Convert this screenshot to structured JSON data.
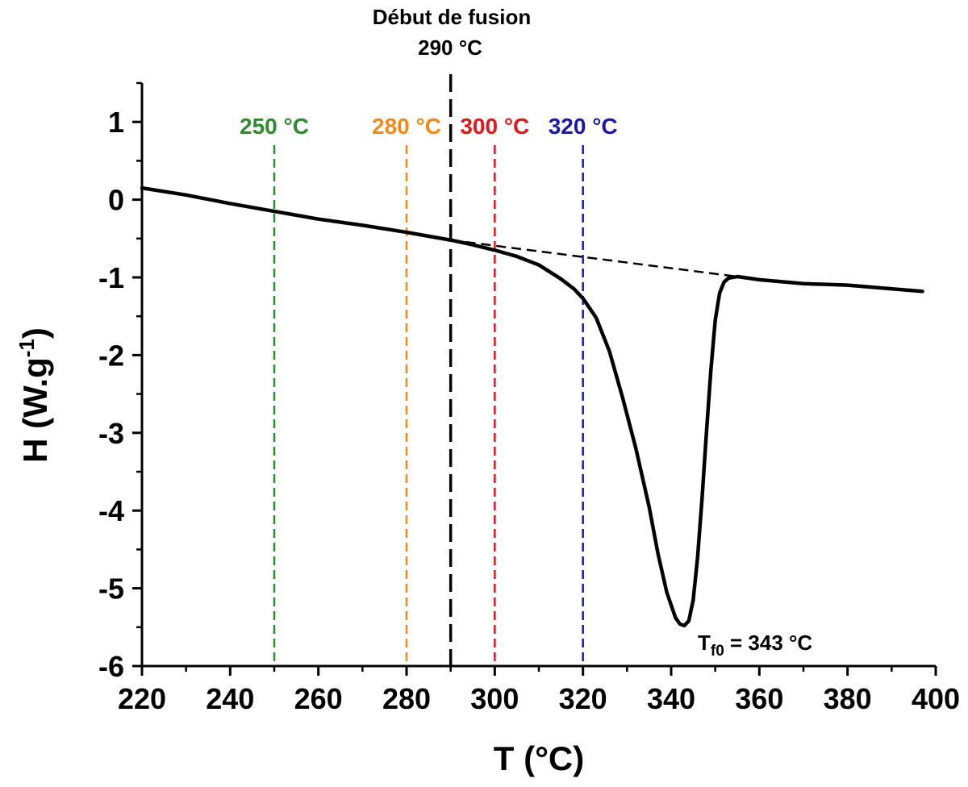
{
  "chart_data": {
    "type": "line",
    "xlabel": "T (°C)",
    "ylabel_main": "H (W.g",
    "ylabel_sup": "-1",
    "ylabel_end": ")",
    "xlim": [
      220,
      400
    ],
    "ylim": [
      -6,
      1.5
    ],
    "x_ticks": [
      220,
      240,
      260,
      280,
      300,
      320,
      340,
      360,
      380,
      400
    ],
    "y_ticks": [
      -6,
      -5,
      -4,
      -3,
      -2,
      -1,
      0,
      1
    ],
    "grid": false,
    "series": [
      {
        "color": "#000000",
        "x": [
          220,
          230,
          240,
          250,
          260,
          270,
          280,
          290,
          295,
          300,
          305,
          310,
          315,
          318,
          320,
          323,
          326,
          329,
          332,
          335,
          337,
          339,
          341,
          342,
          343,
          344,
          345,
          346,
          347,
          348,
          349,
          350,
          351,
          352,
          353,
          355,
          360,
          370,
          380,
          397
        ],
        "y": [
          0.15,
          0.06,
          -0.05,
          -0.15,
          -0.25,
          -0.33,
          -0.42,
          -0.52,
          -0.58,
          -0.65,
          -0.73,
          -0.84,
          -1.02,
          -1.15,
          -1.27,
          -1.52,
          -1.95,
          -2.55,
          -3.2,
          -3.95,
          -4.55,
          -5.05,
          -5.38,
          -5.46,
          -5.48,
          -5.42,
          -5.15,
          -4.6,
          -3.85,
          -3.0,
          -2.2,
          -1.55,
          -1.2,
          -1.06,
          -1.01,
          -0.99,
          -1.03,
          -1.08,
          -1.1,
          -1.18
        ]
      }
    ],
    "baseline": {
      "x": [
        290,
        355
      ],
      "y": [
        -0.52,
        -0.99
      ],
      "color": "#000000",
      "style": "dashed"
    },
    "vlines": [
      {
        "x": 250,
        "label": "250 °C",
        "color": "#2e8b2e"
      },
      {
        "x": 280,
        "label": "280 °C",
        "color": "#f28a1a"
      },
      {
        "x": 290,
        "label_line1": "Début de fusion",
        "label_line2": "290 °C",
        "color": "#000000"
      },
      {
        "x": 300,
        "label": "300 °C",
        "color": "#e8141b"
      },
      {
        "x": 320,
        "label": "320 °C",
        "color": "#1a1aa8"
      }
    ],
    "peak_annotation": {
      "prefix": "T",
      "sub": "f0",
      "suffix": " = 343 °C",
      "x": 343,
      "y": -5.48
    }
  }
}
